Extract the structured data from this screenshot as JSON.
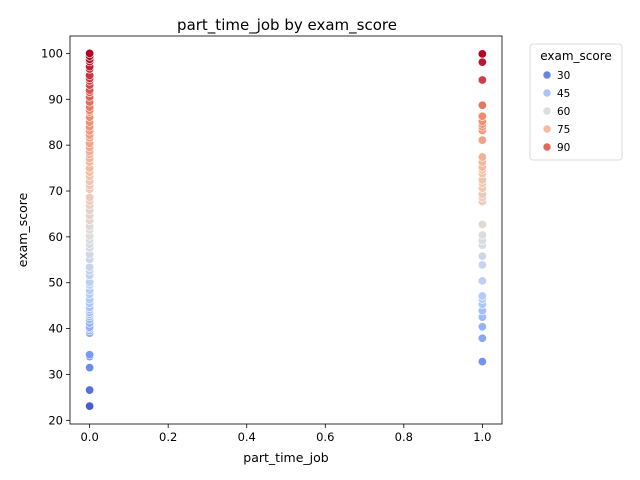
{
  "chart_data": {
    "type": "scatter",
    "title": "part_time_job by exam_score",
    "xlabel": "part_time_job",
    "ylabel": "exam_score",
    "xlim": [
      -0.05,
      1.05
    ],
    "ylim": [
      19.2,
      103.8
    ],
    "xticks": [
      "0.0",
      "0.2",
      "0.4",
      "0.6",
      "0.8",
      "1.0"
    ],
    "yticks": [
      "20",
      "30",
      "40",
      "50",
      "60",
      "70",
      "80",
      "90",
      "100"
    ],
    "grid": false,
    "legend": {
      "title": "exam_score",
      "placement": "outside-upper-right",
      "entries": [
        "30",
        "45",
        "60",
        "75",
        "90"
      ]
    },
    "colormap": [
      "#3b4cc0",
      "#7396f5",
      "#b1cbfc",
      "#dcdddd",
      "#f5c2aa",
      "#f08a6c",
      "#b40426"
    ],
    "hue_range": [
      20,
      100
    ],
    "series": [
      {
        "x": 0,
        "y": [
          23.1,
          26.6,
          31.5,
          33.9,
          34.3,
          39.0,
          39.6,
          40.0,
          40.3,
          41.2,
          42.0,
          42.6,
          43.1,
          43.5,
          44.1,
          44.6,
          45.5,
          46.3,
          47.5,
          48.3,
          49.5,
          50.1,
          51.6,
          52.6,
          53.4,
          55.1,
          56.2,
          57.6,
          58.4,
          59.3,
          60.2,
          61.5,
          62.3,
          63.6,
          64.7,
          65.8,
          66.9,
          67.8,
          68.6,
          70.4,
          71.2,
          72.1,
          73.2,
          74.1,
          75.0,
          76.3,
          77.1,
          78.0,
          78.6,
          79.5,
          80.4,
          81.6,
          82.2,
          83.1,
          84.0,
          85.0,
          86.1,
          87.2,
          87.6,
          88.3,
          89.4,
          90.5,
          91.5,
          92.0,
          93.1,
          94.0,
          94.5,
          95.2,
          96.6,
          97.1,
          98.2,
          98.7,
          99.4,
          100.0
        ]
      },
      {
        "x": 1,
        "y": [
          32.8,
          37.9,
          40.4,
          42.5,
          43.9,
          45.3,
          46.4,
          47.1,
          50.4,
          53.9,
          55.8,
          58.2,
          59.2,
          60.4,
          62.7,
          67.7,
          68.6,
          69.3,
          70.6,
          71.7,
          72.4,
          73.8,
          74.6,
          75.2,
          76.3,
          77.4,
          81.1,
          83.2,
          84.0,
          84.6,
          85.2,
          86.3,
          88.7,
          94.2,
          98.1,
          99.9
        ]
      }
    ]
  }
}
